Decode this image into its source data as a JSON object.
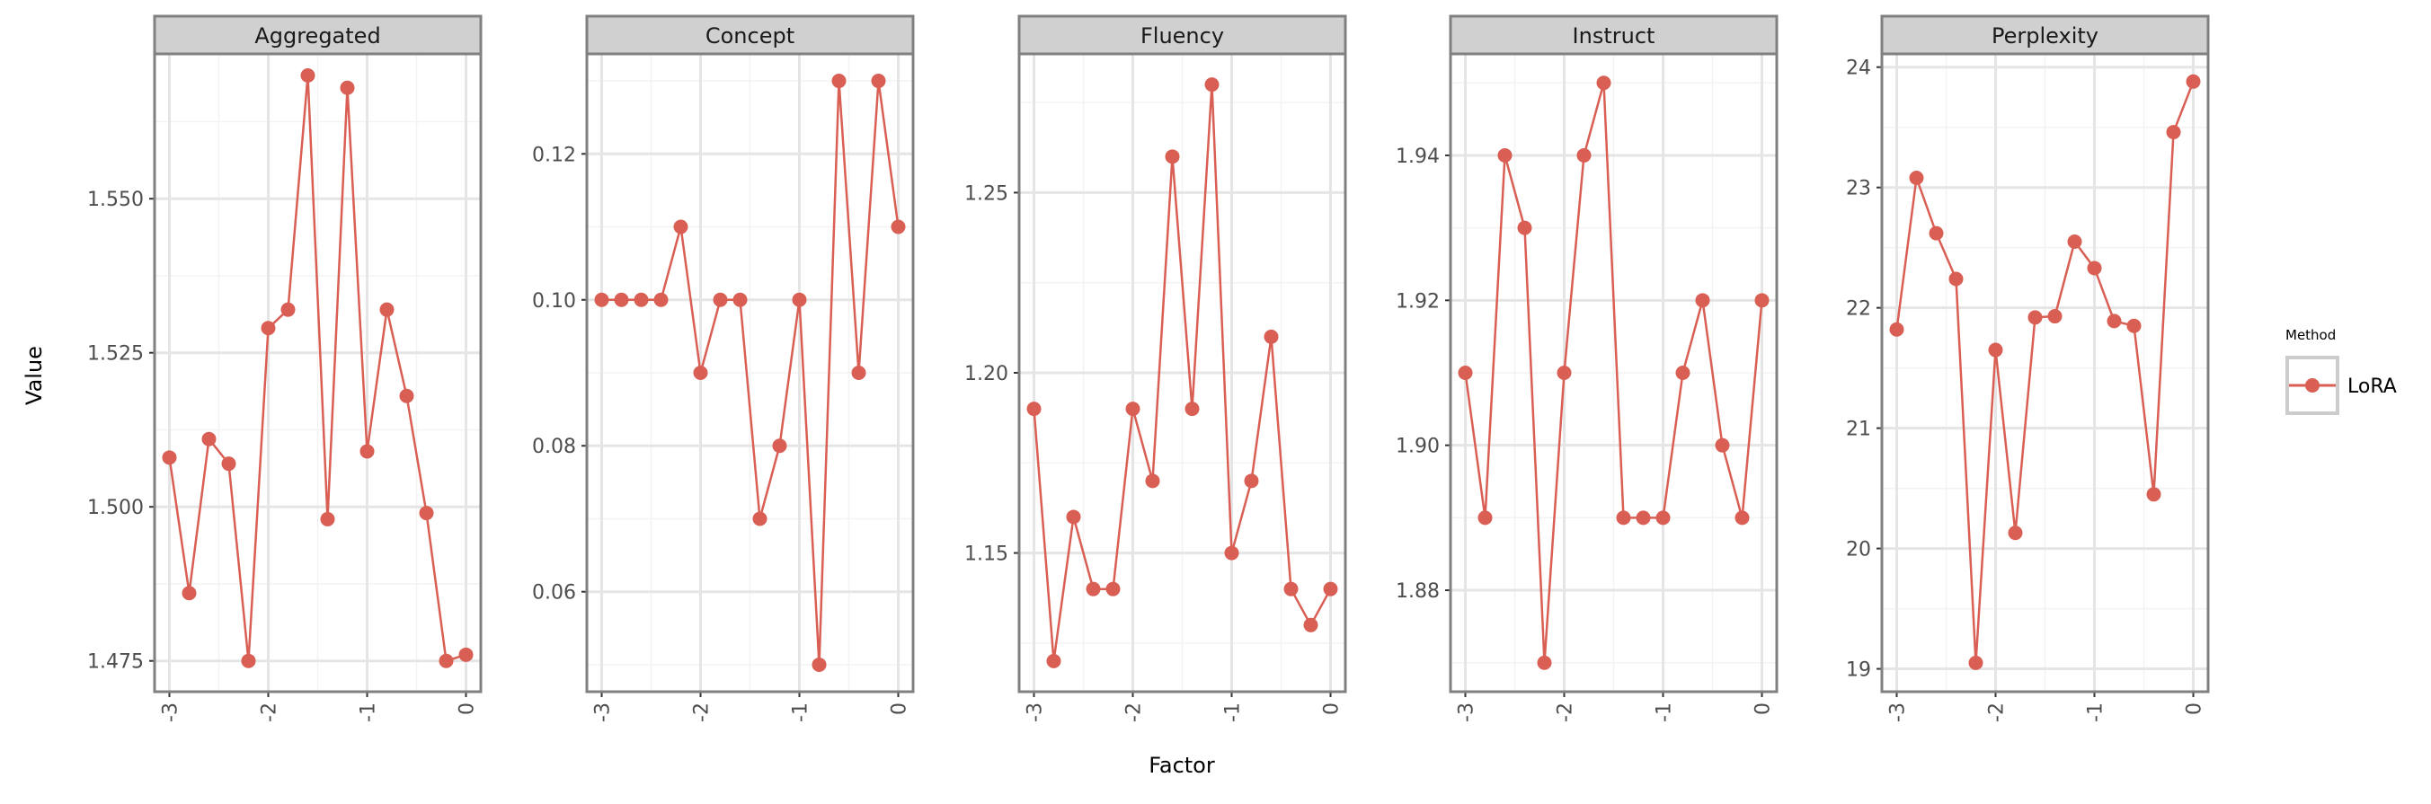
{
  "chart_data": {
    "type": "line",
    "x_label": "Factor",
    "y_label": "Value",
    "x_ticks": [
      "-3",
      "-2",
      "-1",
      "0"
    ],
    "x_range": [
      -3.15,
      0.15
    ],
    "x": [
      -3.0,
      -2.8,
      -2.6,
      -2.4,
      -2.2,
      -2.0,
      -1.8,
      -1.6,
      -1.4,
      -1.2,
      -1.0,
      -0.8,
      -0.6,
      -0.4,
      -0.2,
      0.0
    ],
    "grid": true,
    "legend": {
      "title": "Method",
      "entries": [
        "LoRA"
      ],
      "position": "right"
    },
    "colors": {
      "series": "#d95f54",
      "strip_fill": "#d0d0d0",
      "border": "#808080",
      "grid_major": "#e5e5e5",
      "grid_minor": "#f3f3f3"
    },
    "facets": [
      {
        "title": "Aggregated",
        "ylim": [
          1.47,
          1.5735
        ],
        "y_ticks": [
          "1.475",
          "1.500",
          "1.525",
          "1.550"
        ],
        "series": [
          {
            "name": "LoRA",
            "values": [
              1.508,
              1.486,
              1.511,
              1.507,
              1.475,
              1.529,
              1.532,
              1.57,
              1.498,
              1.568,
              1.509,
              1.532,
              1.518,
              1.499,
              1.475,
              1.476
            ]
          }
        ]
      },
      {
        "title": "Concept",
        "ylim": [
          0.0463,
          0.1337
        ],
        "y_ticks": [
          "0.06",
          "0.08",
          "0.10",
          "0.12"
        ],
        "series": [
          {
            "name": "LoRA",
            "values": [
              0.1,
              0.1,
              0.1,
              0.1,
              0.11,
              0.09,
              0.1,
              0.1,
              0.07,
              0.08,
              0.1,
              0.05,
              0.13,
              0.09,
              0.13,
              0.11
            ]
          }
        ]
      },
      {
        "title": "Fluency",
        "ylim": [
          1.1115,
          1.2885
        ],
        "y_ticks": [
          "1.15",
          "1.20",
          "1.25"
        ],
        "series": [
          {
            "name": "LoRA",
            "values": [
              1.19,
              1.12,
              1.16,
              1.14,
              1.14,
              1.19,
              1.17,
              1.26,
              1.19,
              1.28,
              1.15,
              1.17,
              1.21,
              1.14,
              1.13,
              1.14
            ]
          }
        ]
      },
      {
        "title": "Instruct",
        "ylim": [
          1.866,
          1.954
        ],
        "y_ticks": [
          "1.88",
          "1.90",
          "1.92",
          "1.94"
        ],
        "series": [
          {
            "name": "LoRA",
            "values": [
              1.91,
              1.89,
              1.94,
              1.93,
              1.87,
              1.91,
              1.94,
              1.95,
              1.89,
              1.89,
              1.89,
              1.91,
              1.92,
              1.9,
              1.89,
              1.92
            ]
          }
        ]
      },
      {
        "title": "Perplexity",
        "ylim": [
          18.81,
          24.11
        ],
        "y_ticks": [
          "19",
          "20",
          "21",
          "22",
          "23",
          "24"
        ],
        "series": [
          {
            "name": "LoRA",
            "values": [
              21.82,
              23.08,
              22.62,
              22.24,
              19.05,
              21.65,
              20.13,
              21.92,
              21.93,
              22.55,
              22.33,
              21.89,
              21.85,
              20.45,
              23.46,
              23.88
            ]
          }
        ]
      }
    ]
  }
}
